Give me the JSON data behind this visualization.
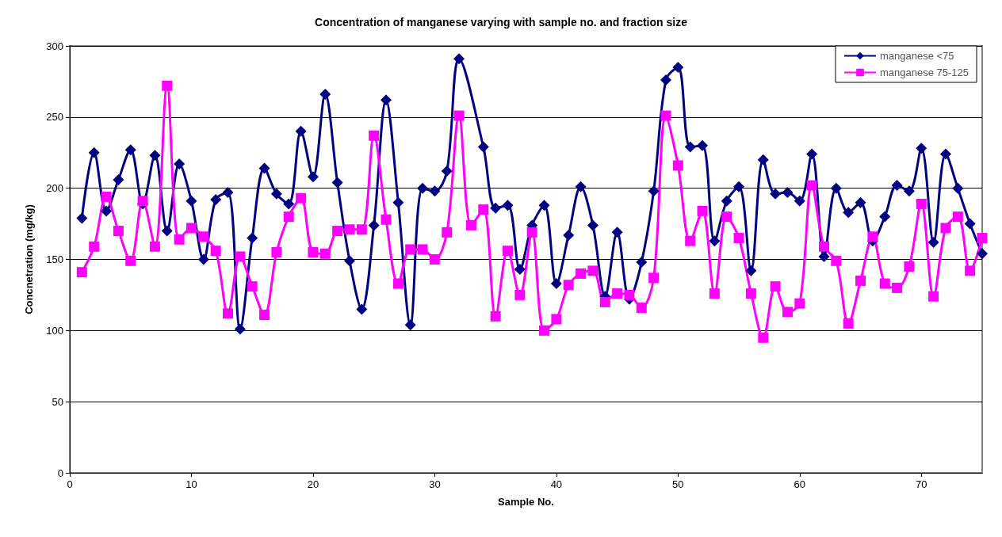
{
  "chart_data": {
    "type": "line",
    "title": "Concentration of manganese varying with sample no. and fraction size",
    "xlabel": "Sample No.",
    "ylabel": "Concnetration (mg/kg)",
    "x": [
      1,
      2,
      3,
      4,
      5,
      6,
      7,
      8,
      9,
      10,
      11,
      12,
      13,
      14,
      15,
      16,
      17,
      18,
      19,
      20,
      21,
      22,
      23,
      24,
      25,
      26,
      27,
      28,
      29,
      30,
      31,
      32,
      33,
      34,
      35,
      36,
      37,
      38,
      39,
      40,
      41,
      42,
      43,
      44,
      45,
      46,
      47,
      48,
      49,
      50,
      51,
      52,
      53,
      54,
      55,
      56,
      57,
      58,
      59,
      60,
      61,
      62,
      63,
      64,
      65,
      66,
      67,
      68,
      69,
      70,
      71,
      72,
      73,
      74,
      75
    ],
    "series": [
      {
        "name": "manganese <75",
        "color": "#000080",
        "marker": "diamond",
        "values": [
          179,
          225,
          184,
          206,
          227,
          189,
          223,
          170,
          217,
          191,
          150,
          192,
          197,
          101,
          165,
          214,
          196,
          189,
          240,
          208,
          266,
          204,
          149,
          115,
          174,
          262,
          190,
          104,
          200,
          198,
          212,
          291,
          null,
          229,
          186,
          188,
          143,
          174,
          188,
          133,
          167,
          201,
          174,
          124,
          169,
          122,
          148,
          198,
          276,
          285,
          229,
          230,
          163,
          191,
          201,
          142,
          220,
          196,
          197,
          191,
          224,
          152,
          200,
          183,
          190,
          163,
          180,
          202,
          198,
          228,
          162,
          224,
          200,
          175,
          154
        ]
      },
      {
        "name": "manganese 75-125",
        "color": "#ff00ff",
        "marker": "square",
        "values": [
          141,
          159,
          194,
          170,
          149,
          191,
          159,
          272,
          164,
          172,
          166,
          156,
          112,
          152,
          131,
          111,
          155,
          180,
          193,
          155,
          154,
          170,
          171,
          171,
          237,
          178,
          133,
          157,
          157,
          150,
          169,
          251,
          174,
          185,
          110,
          156,
          125,
          169,
          100,
          108,
          132,
          140,
          142,
          120,
          126,
          125,
          116,
          137,
          251,
          216,
          163,
          184,
          126,
          180,
          165,
          126,
          95,
          131,
          113,
          119,
          202,
          159,
          149,
          105,
          135,
          166,
          133,
          130,
          145,
          189,
          124,
          172,
          180,
          142,
          165
        ]
      }
    ],
    "xlim": [
      0,
      75
    ],
    "xticks": [
      0,
      10,
      20,
      30,
      40,
      50,
      60,
      70
    ],
    "ylim": [
      0,
      300
    ],
    "yticks": [
      0,
      50,
      100,
      150,
      200,
      250,
      300
    ],
    "grid": "y",
    "legend": "top right"
  }
}
